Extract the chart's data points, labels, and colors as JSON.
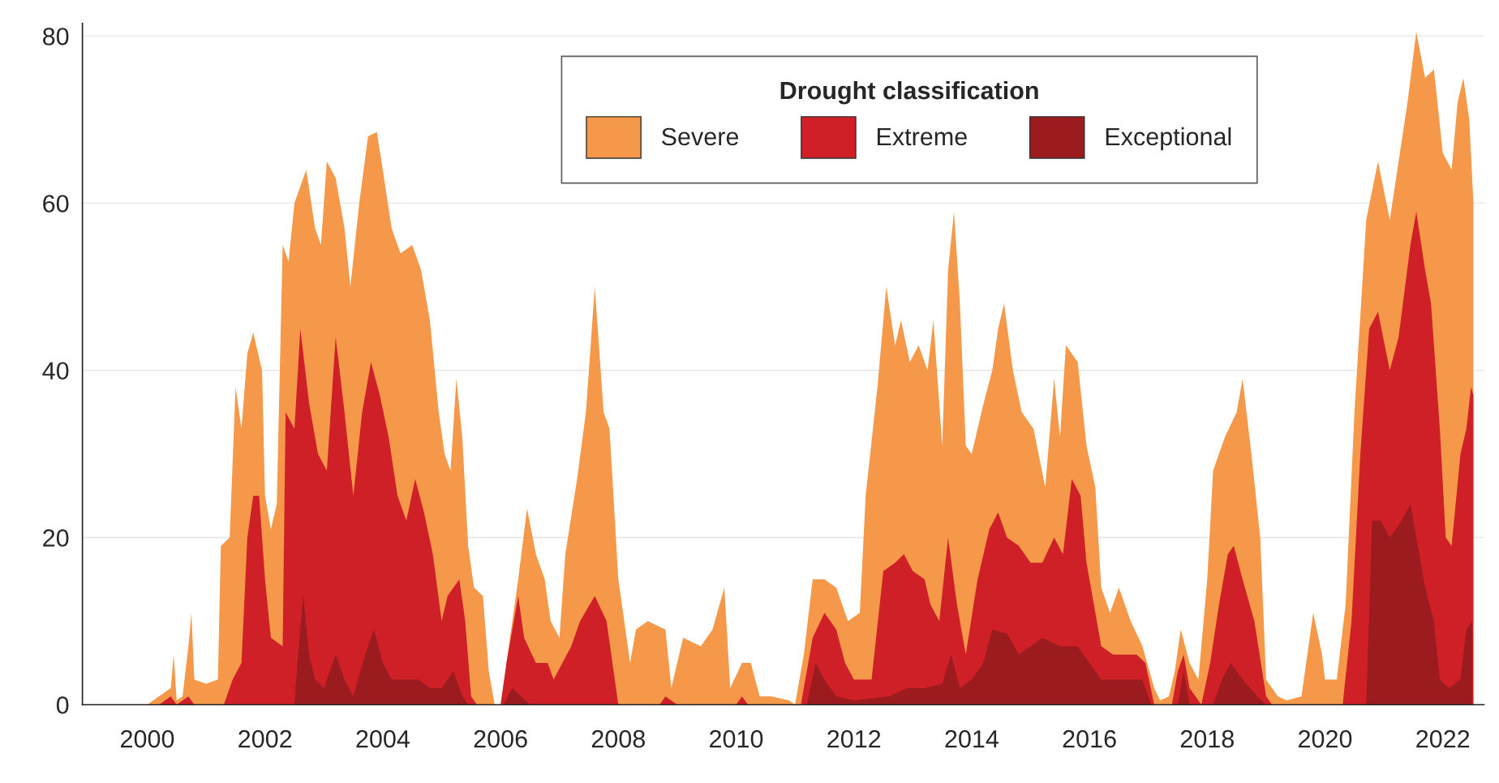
{
  "chart_data": {
    "type": "area",
    "legend_title": "Drought classification",
    "legend": "top",
    "grid": "y",
    "xlim": [
      1998.9,
      2022.7
    ],
    "ylim": [
      0,
      81.5
    ],
    "xticks": [
      2000,
      2002,
      2004,
      2006,
      2008,
      2010,
      2012,
      2014,
      2016,
      2018,
      2020,
      2022
    ],
    "yticks": [
      0,
      20,
      40,
      60,
      80
    ],
    "series": [
      {
        "name": "Severe",
        "color": "#f5984a",
        "x": [
          2000.0,
          2000.2,
          2000.4,
          2000.45,
          2000.5,
          2000.6,
          2000.7,
          2000.75,
          2000.8,
          2001.0,
          2001.2,
          2001.25,
          2001.4,
          2001.5,
          2001.6,
          2001.7,
          2001.8,
          2001.95,
          2002.0,
          2002.1,
          2002.2,
          2002.3,
          2002.4,
          2002.5,
          2002.7,
          2002.85,
          2002.95,
          2003.05,
          2003.2,
          2003.35,
          2003.45,
          2003.6,
          2003.75,
          2003.9,
          2004.0,
          2004.15,
          2004.3,
          2004.5,
          2004.65,
          2004.8,
          2004.95,
          2005.05,
          2005.15,
          2005.25,
          2005.35,
          2005.45,
          2005.55,
          2005.7,
          2005.8,
          2005.9,
          2006.05,
          2006.1,
          2006.3,
          2006.45,
          2006.6,
          2006.75,
          2006.85,
          2007.0,
          2007.1,
          2007.3,
          2007.45,
          2007.6,
          2007.75,
          2007.85,
          2008.0,
          2008.1,
          2008.2,
          2008.3,
          2008.5,
          2008.8,
          2008.9,
          2009.1,
          2009.4,
          2009.6,
          2009.8,
          2009.9,
          2010.1,
          2010.25,
          2010.4,
          2010.6,
          2010.9,
          2011.0,
          2011.15,
          2011.3,
          2011.5,
          2011.7,
          2011.9,
          2012.1,
          2012.2,
          2012.4,
          2012.55,
          2012.7,
          2012.8,
          2012.95,
          2013.1,
          2013.25,
          2013.35,
          2013.5,
          2013.6,
          2013.7,
          2013.8,
          2013.9,
          2014.0,
          2014.2,
          2014.35,
          2014.45,
          2014.55,
          2014.7,
          2014.85,
          2015.05,
          2015.25,
          2015.4,
          2015.5,
          2015.6,
          2015.8,
          2015.95,
          2016.1,
          2016.2,
          2016.35,
          2016.5,
          2016.7,
          2016.9,
          2017.1,
          2017.2,
          2017.35,
          2017.45,
          2017.55,
          2017.7,
          2017.85,
          2018.0,
          2018.1,
          2018.3,
          2018.5,
          2018.6,
          2018.75,
          2018.9,
          2019.0,
          2019.2,
          2019.35,
          2019.6,
          2019.8,
          2019.95,
          2020.0,
          2020.2,
          2020.35,
          2020.5,
          2020.7,
          2020.9,
          2021.1,
          2021.25,
          2021.4,
          2021.55,
          2021.7,
          2021.85,
          2022.0,
          2022.15,
          2022.25,
          2022.35,
          2022.45,
          2022.52
        ],
        "values": [
          0,
          1,
          2,
          6,
          0.5,
          1,
          7,
          11,
          3,
          2.5,
          3,
          19,
          20,
          38,
          33,
          42,
          44.5,
          40,
          25,
          21,
          24,
          55,
          53,
          60,
          64,
          57,
          55,
          65,
          63,
          57,
          50,
          60,
          68,
          68.5,
          64,
          57,
          54,
          55,
          52,
          46,
          35,
          30,
          28,
          39,
          32,
          19,
          14,
          13,
          4,
          0,
          0,
          5,
          15,
          23.5,
          18,
          15,
          10,
          8,
          18,
          27,
          35,
          50,
          35,
          33,
          15,
          10,
          5,
          9,
          10,
          9,
          2,
          8,
          7,
          9,
          14,
          2,
          5,
          5,
          1,
          1,
          0.5,
          0,
          6,
          15,
          15,
          14,
          10,
          11,
          25,
          38,
          50,
          43,
          46,
          41,
          43,
          40,
          46,
          31,
          52,
          59,
          48,
          31,
          30,
          36,
          40,
          45,
          48,
          40,
          35,
          33,
          26,
          39,
          32,
          43,
          41,
          31,
          26,
          14,
          11,
          14,
          10,
          7,
          2,
          0.5,
          1,
          4,
          9,
          5,
          3,
          15,
          28,
          32,
          35,
          39,
          30,
          20,
          3,
          1,
          0.5,
          1,
          11,
          6,
          3,
          3,
          12,
          35,
          58,
          65,
          58,
          65,
          72,
          80.5,
          75,
          76,
          66,
          64,
          72,
          75,
          70,
          60
        ]
      },
      {
        "name": "Extreme",
        "color": "#cf2027",
        "x": [
          2000.2,
          2000.4,
          2000.5,
          2000.7,
          2000.8,
          2001.3,
          2001.45,
          2001.6,
          2001.7,
          2001.8,
          2001.9,
          2002.0,
          2002.1,
          2002.3,
          2002.35,
          2002.5,
          2002.6,
          2002.75,
          2002.9,
          2003.05,
          2003.2,
          2003.35,
          2003.5,
          2003.65,
          2003.8,
          2003.95,
          2004.1,
          2004.25,
          2004.4,
          2004.55,
          2004.7,
          2004.85,
          2005.0,
          2005.1,
          2005.3,
          2005.4,
          2005.5,
          2005.6,
          2006.0,
          2006.1,
          2006.3,
          2006.4,
          2006.6,
          2006.8,
          2006.9,
          2007.2,
          2007.35,
          2007.6,
          2007.8,
          2008.0,
          2008.7,
          2008.8,
          2009.0,
          2010.0,
          2010.1,
          2010.2,
          2011.1,
          2011.3,
          2011.5,
          2011.7,
          2011.85,
          2012.0,
          2012.3,
          2012.5,
          2012.7,
          2012.85,
          2013.0,
          2013.2,
          2013.3,
          2013.45,
          2013.6,
          2013.75,
          2013.9,
          2014.1,
          2014.3,
          2014.45,
          2014.6,
          2014.8,
          2015.0,
          2015.2,
          2015.4,
          2015.55,
          2015.7,
          2015.85,
          2015.95,
          2016.1,
          2016.2,
          2016.4,
          2016.8,
          2016.95,
          2017.1,
          2017.4,
          2017.5,
          2017.6,
          2017.7,
          2017.9,
          2018.05,
          2018.2,
          2018.35,
          2018.45,
          2018.6,
          2018.8,
          2019.0,
          2019.1,
          2020.3,
          2020.45,
          2020.6,
          2020.75,
          2020.9,
          2021.1,
          2021.25,
          2021.45,
          2021.55,
          2021.7,
          2021.8,
          2021.95,
          2022.05,
          2022.15,
          2022.3,
          2022.4,
          2022.48,
          2022.52
        ],
        "values": [
          0,
          1,
          0,
          1,
          0,
          0,
          3,
          5,
          20,
          25,
          25,
          15,
          8,
          7,
          35,
          33,
          45,
          36,
          30,
          28,
          44,
          35,
          25,
          35,
          41,
          37,
          32,
          25,
          22,
          27,
          23,
          18,
          10,
          13,
          15,
          10,
          1,
          0,
          0,
          5,
          13,
          8,
          5,
          5,
          3,
          7,
          10,
          13,
          10,
          0,
          0,
          1,
          0,
          0,
          1,
          0,
          0,
          8,
          11,
          9,
          5,
          3,
          3,
          16,
          17,
          18,
          16,
          15,
          12,
          10,
          20,
          12,
          6,
          15,
          21,
          23,
          20,
          19,
          17,
          17,
          20,
          18,
          27,
          25,
          17,
          11,
          7,
          6,
          6,
          5,
          0,
          0,
          4,
          6,
          2,
          0,
          5,
          12,
          18,
          19,
          15,
          10,
          1,
          0,
          0,
          10,
          30,
          45,
          47,
          40,
          44,
          55,
          59,
          52,
          48,
          33,
          20,
          19,
          30,
          33,
          38,
          37
        ]
      },
      {
        "name": "Exceptional",
        "color": "#9b1b1e",
        "x": [
          2002.5,
          2002.55,
          2002.65,
          2002.75,
          2002.85,
          2003.0,
          2003.2,
          2003.35,
          2003.5,
          2003.7,
          2003.85,
          2004.0,
          2004.15,
          2004.35,
          2004.6,
          2004.8,
          2005.0,
          2005.2,
          2005.35,
          2005.45,
          2006.05,
          2006.2,
          2006.35,
          2006.5,
          2011.2,
          2011.35,
          2011.5,
          2011.7,
          2012.0,
          2012.6,
          2012.9,
          2013.2,
          2013.5,
          2013.65,
          2013.8,
          2014.0,
          2014.2,
          2014.35,
          2014.6,
          2014.8,
          2015.0,
          2015.2,
          2015.5,
          2015.8,
          2016.0,
          2016.2,
          2016.9,
          2017.05,
          2017.5,
          2017.6,
          2017.7,
          2018.1,
          2018.25,
          2018.4,
          2018.6,
          2018.85,
          2019.0,
          2020.7,
          2020.8,
          2020.95,
          2021.1,
          2021.3,
          2021.45,
          2021.55,
          2021.7,
          2021.85,
          2021.95,
          2022.1,
          2022.3,
          2022.4,
          2022.5
        ],
        "values": [
          0,
          5,
          13,
          6,
          3,
          2,
          6,
          3,
          1,
          6,
          9,
          5,
          3,
          3,
          3,
          2,
          2,
          4,
          1,
          0,
          0,
          2,
          1,
          0,
          0,
          5,
          3,
          1,
          0.5,
          1,
          2,
          2,
          2.5,
          6,
          2,
          3,
          5,
          9,
          8.5,
          6,
          7,
          8,
          7,
          7,
          5,
          3,
          3,
          0,
          0,
          4,
          0,
          0,
          3,
          5,
          3,
          1,
          0,
          0,
          22,
          22,
          20,
          22,
          24,
          20,
          14,
          10,
          3,
          2,
          3,
          9,
          10
        ]
      }
    ]
  }
}
